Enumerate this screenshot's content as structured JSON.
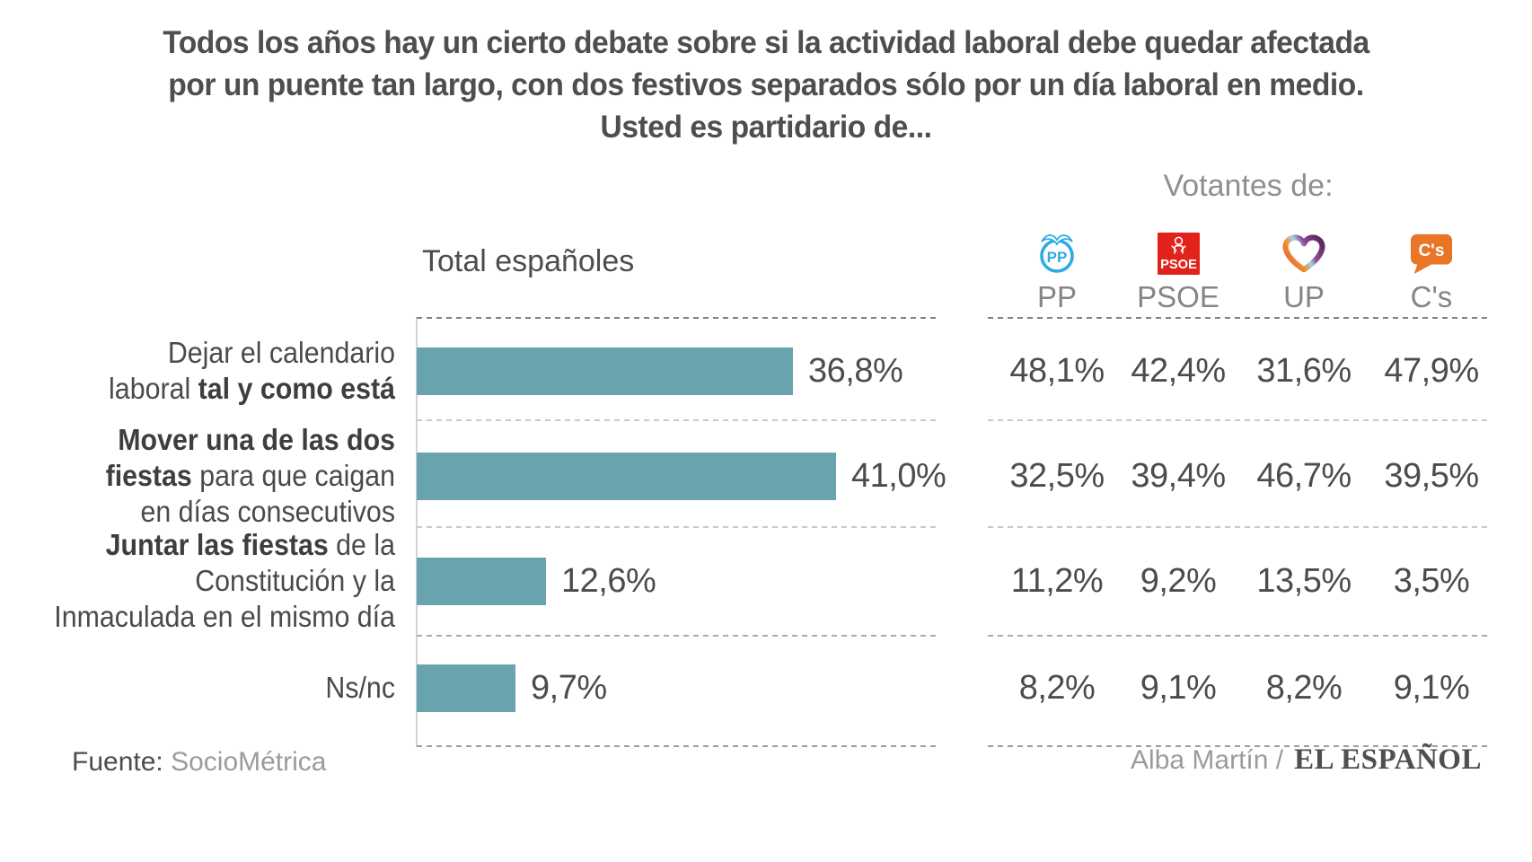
{
  "title": {
    "line1": "Todos los años hay un cierto debate sobre si la actividad laboral debe quedar afectada",
    "line2": "por un puente tan largo, con dos festivos separados sólo por un día laboral en medio.",
    "line3": "Usted es partidario de..."
  },
  "header": {
    "total_label": "Total españoles",
    "voters_label": "Votantes de:"
  },
  "parties": [
    {
      "id": "pp",
      "label": "PP",
      "icon": "pp-party-logo",
      "color": "#2cace3"
    },
    {
      "id": "psoe",
      "label": "PSOE",
      "icon": "psoe-party-logo",
      "color": "#e2231a"
    },
    {
      "id": "up",
      "label": "UP",
      "icon": "up-heart-logo",
      "color": "#6e2d70"
    },
    {
      "id": "cs",
      "label": "C's",
      "icon": "cs-bubble-logo",
      "color": "#e97626"
    }
  ],
  "rows": [
    {
      "label_lines": [
        [
          {
            "t": "Dejar el calendario"
          }
        ],
        [
          {
            "t": "laboral "
          },
          {
            "t": "tal y como está",
            "b": true
          }
        ]
      ],
      "value": 36.8,
      "value_label": "36,8%",
      "party_values": [
        "48,1%",
        "42,4%",
        "31,6%",
        "47,9%"
      ]
    },
    {
      "label_lines": [
        [
          {
            "t": "Mover una de las dos",
            "b": true
          }
        ],
        [
          {
            "t": "fiestas",
            "b": true
          },
          {
            "t": " para que caigan"
          }
        ],
        [
          {
            "t": "en días consecutivos"
          }
        ]
      ],
      "value": 41.0,
      "value_label": "41,0%",
      "party_values": [
        "32,5%",
        "39,4%",
        "46,7%",
        "39,5%"
      ]
    },
    {
      "label_lines": [
        [
          {
            "t": "Juntar las fiestas",
            "b": true
          },
          {
            "t": " de la"
          }
        ],
        [
          {
            "t": "Constitución y la"
          }
        ],
        [
          {
            "t": "Inmaculada en el mismo día"
          }
        ]
      ],
      "value": 12.6,
      "value_label": "12,6%",
      "party_values": [
        "11,2%",
        "9,2%",
        "13,5%",
        "3,5%"
      ]
    },
    {
      "label_lines": [
        [
          {
            "t": "Ns/nc"
          }
        ]
      ],
      "value": 9.7,
      "value_label": "9,7%",
      "party_values": [
        "8,2%",
        "9,1%",
        "8,2%",
        "9,1%"
      ]
    }
  ],
  "footer": {
    "source_prefix": "Fuente:",
    "source": "SocioMétrica",
    "credit": "Alba Martín /",
    "brand": "EL ESPAÑOL"
  },
  "colors": {
    "bar": "#69a3ae",
    "text_dark": "#4d4d4d",
    "text_gray": "#9b9b9b"
  },
  "chart_data": {
    "type": "bar",
    "orientation": "horizontal",
    "title": "Todos los años hay un cierto debate sobre si la actividad laboral debe quedar afectada por un puente tan largo, con dos festivos separados sólo por un día laboral en medio. Usted es partidario de...",
    "unit": "%",
    "categories": [
      "Dejar el calendario laboral tal y como está",
      "Mover una de las dos fiestas para que caigan en días consecutivos",
      "Juntar las fiestas de la Constitución y la Inmaculada en el mismo día",
      "Ns/nc"
    ],
    "series": [
      {
        "name": "Total españoles",
        "values": [
          36.8,
          41.0,
          12.6,
          9.7
        ]
      },
      {
        "name": "PP",
        "values": [
          48.1,
          32.5,
          11.2,
          8.2
        ]
      },
      {
        "name": "PSOE",
        "values": [
          42.4,
          39.4,
          9.2,
          9.1
        ]
      },
      {
        "name": "UP",
        "values": [
          31.6,
          46.7,
          13.5,
          8.2
        ]
      },
      {
        "name": "C's",
        "values": [
          47.9,
          39.5,
          3.5,
          9.1
        ]
      }
    ],
    "xlim": [
      0,
      50
    ],
    "grid": "dashed-row-separators",
    "legend_position": "column-headers-top-right",
    "source": "SocioMétrica"
  }
}
